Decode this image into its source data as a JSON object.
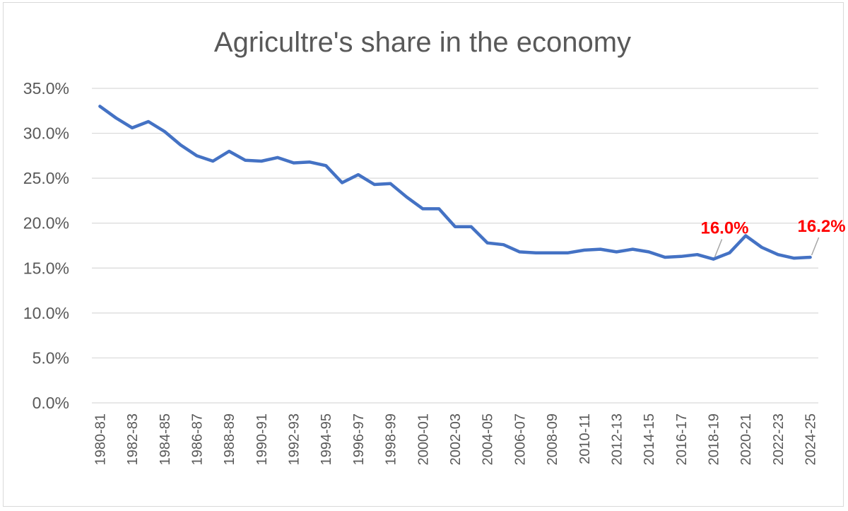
{
  "chart_data": {
    "type": "line",
    "title": "Agricultre's share in the economy",
    "xlabel": "",
    "ylabel": "",
    "ylim": [
      0,
      35
    ],
    "yticks": [
      "0.0%",
      "5.0%",
      "10.0%",
      "15.0%",
      "20.0%",
      "25.0%",
      "30.0%",
      "35.0%"
    ],
    "grid": true,
    "legend": "none",
    "categories": [
      "1980-81",
      "1981-82",
      "1982-83",
      "1983-84",
      "1984-85",
      "1985-86",
      "1986-87",
      "1987-88",
      "1988-89",
      "1989-90",
      "1990-91",
      "1991-92",
      "1992-93",
      "1993-94",
      "1994-95",
      "1995-96",
      "1996-97",
      "1997-98",
      "1998-99",
      "1999-00",
      "2000-01",
      "2001-02",
      "2002-03",
      "2003-04",
      "2004-05",
      "2005-06",
      "2006-07",
      "2007-08",
      "2008-09",
      "2009-10",
      "2010-11",
      "2011-12",
      "2012-13",
      "2013-14",
      "2014-15",
      "2015-16",
      "2016-17",
      "2017-18",
      "2018-19",
      "2019-20",
      "2020-21",
      "2021-22",
      "2022-23",
      "2023-24",
      "2024-25"
    ],
    "xtick_labels": [
      "1980-81",
      "1982-83",
      "1984-85",
      "1986-87",
      "1988-89",
      "1990-91",
      "1992-93",
      "1994-95",
      "1996-97",
      "1998-99",
      "2000-01",
      "2002-03",
      "2004-05",
      "2006-07",
      "2008-09",
      "2010-11",
      "2012-13",
      "2014-15",
      "2016-17",
      "2018-19",
      "2020-21",
      "2022-23",
      "2024-25"
    ],
    "series": [
      {
        "color": "#4472c4",
        "values": [
          33.0,
          31.7,
          30.6,
          31.3,
          30.2,
          28.7,
          27.5,
          26.9,
          28.0,
          27.0,
          26.9,
          27.3,
          26.7,
          26.8,
          26.4,
          24.5,
          25.4,
          24.3,
          24.4,
          22.9,
          21.6,
          21.6,
          19.6,
          19.6,
          17.8,
          17.6,
          16.8,
          16.7,
          16.7,
          16.7,
          17.0,
          17.1,
          16.8,
          17.1,
          16.8,
          16.2,
          16.3,
          16.5,
          16.0,
          16.7,
          18.6,
          17.3,
          16.5,
          16.1,
          16.2
        ]
      }
    ],
    "annotations": [
      {
        "text": "16.0%",
        "category": "2018-19",
        "value": 16.0,
        "color": "#ff0000"
      },
      {
        "text": "16.2%",
        "category": "2024-25",
        "value": 16.2,
        "color": "#ff0000"
      }
    ]
  }
}
